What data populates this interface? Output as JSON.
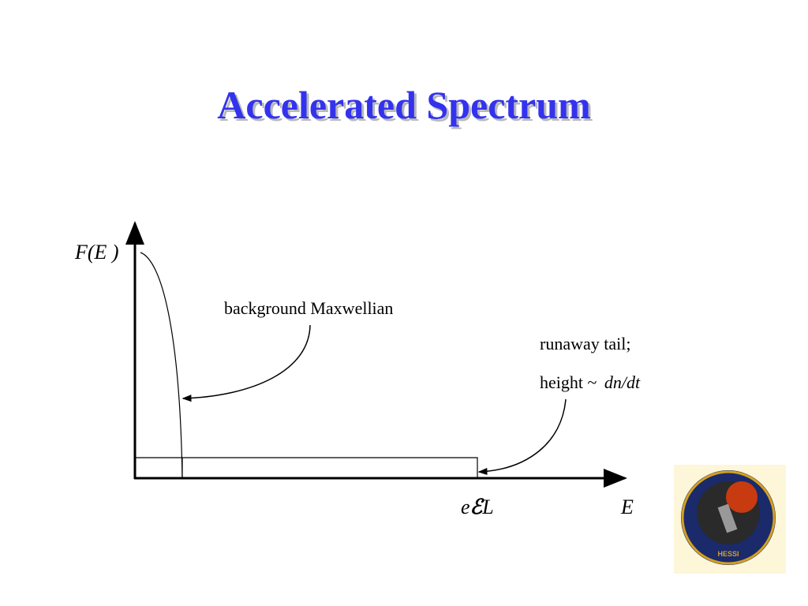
{
  "title": "Accelerated Spectrum",
  "diagram": {
    "y_axis_label": "F(E )",
    "x_axis_label": "E",
    "threshold_label": {
      "prefix": "e",
      "symbol": "ℰ",
      "suffix": "L"
    },
    "maxwellian_label": "background Maxwellian",
    "tail_label": {
      "line1": "runaway tail;",
      "line2_prefix": "height ~",
      "line2_italic": "dn/dt"
    }
  },
  "logo": {
    "label": "HESSI"
  }
}
